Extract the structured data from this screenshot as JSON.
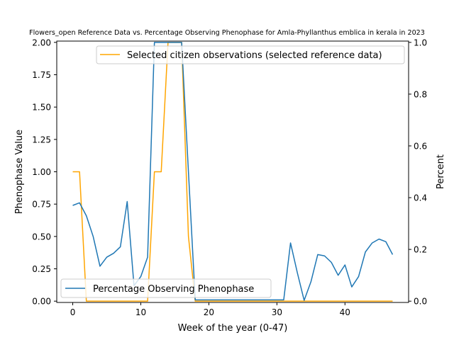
{
  "chart_data": {
    "type": "line",
    "title": "Flowers_open Reference Data vs. Percentage Observing Phenophase for Amla-Phyllanthus emblica in kerala in 2023",
    "xlabel": "Week of the year (0-47)",
    "ylabel": "Phenophase Value",
    "y2label": "Percent",
    "xlim": [
      -2.35,
      49.35
    ],
    "ylim": [
      -0.01,
      2.01
    ],
    "y2lim": [
      -0.005,
      1.005
    ],
    "x_ticks": [
      0,
      10,
      20,
      30,
      40
    ],
    "y_ticks": [
      0.0,
      0.25,
      0.5,
      0.75,
      1.0,
      1.25,
      1.5,
      1.75,
      2.0
    ],
    "y_tick_labels": [
      "0.00",
      "0.25",
      "0.50",
      "0.75",
      "1.00",
      "1.25",
      "1.50",
      "1.75",
      "2.00"
    ],
    "y2_ticks": [
      0.0,
      0.2,
      0.4,
      0.6,
      0.8,
      1.0
    ],
    "y2_tick_labels": [
      "0.0",
      "0.2",
      "0.4",
      "0.6",
      "0.8",
      "1.0"
    ],
    "x": [
      0,
      1,
      2,
      3,
      4,
      5,
      6,
      7,
      8,
      9,
      10,
      11,
      12,
      13,
      14,
      15,
      16,
      17,
      18,
      19,
      20,
      21,
      22,
      23,
      24,
      25,
      26,
      27,
      28,
      29,
      30,
      31,
      32,
      33,
      34,
      35,
      36,
      37,
      38,
      39,
      40,
      41,
      42,
      43,
      44,
      45,
      46,
      47
    ],
    "series": [
      {
        "name": "Selected citizen observations (selected reference data)",
        "axis": "left",
        "color": "#ffa500",
        "legend": "top-right",
        "values": [
          1,
          1,
          0,
          0,
          0,
          0,
          0,
          0,
          0,
          0,
          0,
          0,
          1,
          1,
          2,
          2,
          2,
          0.5,
          0,
          0,
          0,
          0,
          0,
          0,
          0,
          0,
          0,
          0,
          0,
          0,
          0,
          0,
          0,
          0,
          0,
          0,
          0,
          0,
          0,
          0,
          0,
          0,
          0,
          0,
          0,
          0,
          0,
          0
        ]
      },
      {
        "name": "Percentage Observing Phenophase",
        "axis": "right",
        "color": "#1f77b4",
        "legend": "lower-left",
        "values": [
          0.37,
          0.38,
          0.33,
          0.25,
          0.135,
          0.17,
          0.185,
          0.21,
          0.385,
          0.06,
          0.095,
          0.17,
          1.0,
          1.0,
          1.0,
          1.0,
          1.0,
          0.5,
          0.005,
          0.005,
          0.005,
          0.005,
          0.005,
          0.005,
          0.005,
          0.005,
          0.005,
          0.005,
          0.005,
          0.005,
          0.005,
          0.005,
          0.225,
          0.11,
          0.003,
          0.075,
          0.18,
          0.175,
          0.15,
          0.1,
          0.14,
          0.055,
          0.095,
          0.19,
          0.225,
          0.24,
          0.23,
          0.18
        ]
      }
    ]
  }
}
